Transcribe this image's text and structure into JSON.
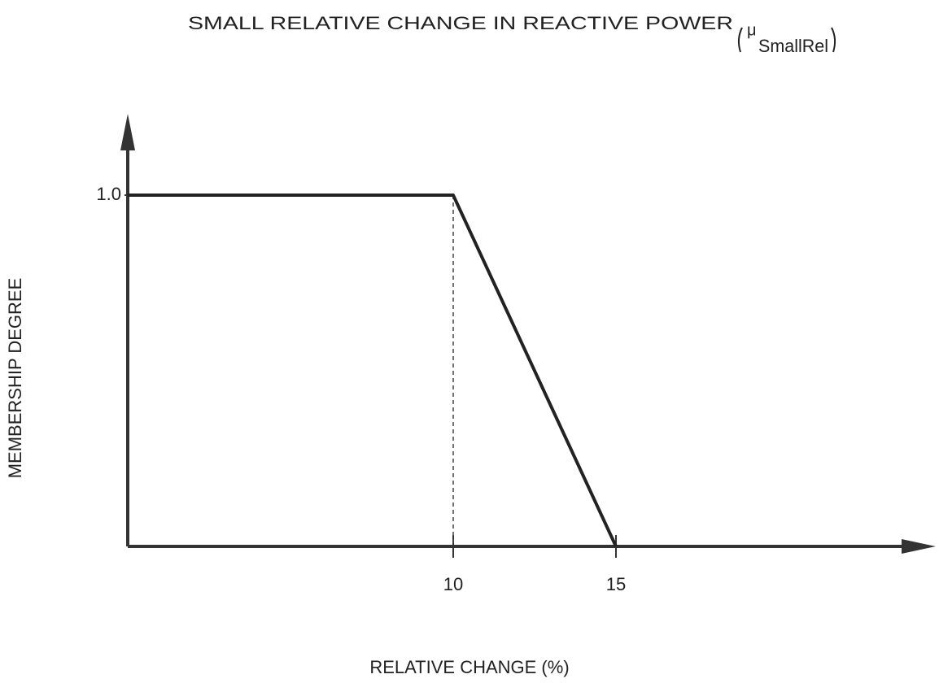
{
  "chart_data": {
    "type": "line",
    "title": "SMALL RELATIVE CHANGE IN REACTIVE POWER",
    "title_symbol": "μ",
    "title_symbol_subscript": "SmallRel",
    "xlabel": "RELATIVE CHANGE (%)",
    "ylabel": "MEMBERSHIP DEGREE",
    "x": [
      0,
      10,
      15
    ],
    "series": [
      {
        "color": "#222222",
        "values": [
          1.0,
          1.0,
          0
        ]
      }
    ],
    "xlim": [
      0,
      24.5
    ],
    "ylim": [
      0,
      1.22
    ],
    "xticks": [
      10,
      15
    ],
    "yticks": [
      {
        "value": 1.0,
        "label": "1.0"
      }
    ]
  }
}
